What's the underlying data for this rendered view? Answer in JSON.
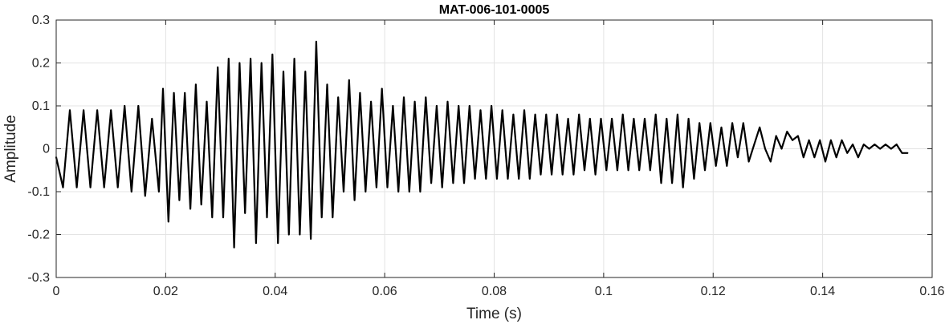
{
  "chart_data": {
    "type": "line",
    "title": "MAT-006-101-0005",
    "xlabel": "Time (s)",
    "ylabel": "Amplitude",
    "xlim": [
      0,
      0.16
    ],
    "ylim": [
      -0.3,
      0.3
    ],
    "grid": true,
    "x_ticks": [
      0,
      0.02,
      0.04,
      0.06,
      0.08,
      0.1,
      0.12,
      0.14,
      0.16
    ],
    "x_tick_labels": [
      "0",
      "0.02",
      "0.04",
      "0.06",
      "0.08",
      "0.1",
      "0.12",
      "0.14",
      "0.16"
    ],
    "y_ticks": [
      -0.3,
      -0.2,
      -0.1,
      0,
      0.1,
      0.2,
      0.3
    ],
    "y_tick_labels": [
      "-0.3",
      "-0.2",
      "-0.1",
      "0",
      "0.1",
      "0.2",
      "0.3"
    ],
    "series": [
      {
        "color": "#000000",
        "x": [
          0,
          0.00125,
          0.0025,
          0.00375,
          0.005,
          0.00625,
          0.0075,
          0.00875,
          0.01,
          0.01125,
          0.0125,
          0.01375,
          0.015,
          0.01625,
          0.0175,
          0.01875,
          0.0195,
          0.0205,
          0.0215,
          0.0225,
          0.0235,
          0.0245,
          0.0255,
          0.0265,
          0.0275,
          0.0285,
          0.0295,
          0.0305,
          0.0315,
          0.0325,
          0.0335,
          0.0345,
          0.0355,
          0.0365,
          0.0375,
          0.0385,
          0.0395,
          0.0405,
          0.0415,
          0.0425,
          0.0435,
          0.0445,
          0.0455,
          0.0465,
          0.0475,
          0.0485,
          0.0495,
          0.0505,
          0.0515,
          0.0525,
          0.0535,
          0.0545,
          0.0555,
          0.0565,
          0.0575,
          0.0585,
          0.0595,
          0.0605,
          0.0615,
          0.0625,
          0.0635,
          0.0645,
          0.0655,
          0.0665,
          0.0675,
          0.0685,
          0.0695,
          0.0705,
          0.0715,
          0.0725,
          0.0735,
          0.0745,
          0.0755,
          0.0765,
          0.0775,
          0.0785,
          0.0795,
          0.0805,
          0.0815,
          0.0825,
          0.0835,
          0.0845,
          0.0855,
          0.0865,
          0.0875,
          0.0885,
          0.0895,
          0.0905,
          0.0915,
          0.0925,
          0.0935,
          0.0945,
          0.0955,
          0.0965,
          0.0975,
          0.0985,
          0.0995,
          0.1005,
          0.1015,
          0.1025,
          0.1035,
          0.1045,
          0.1055,
          0.1065,
          0.1075,
          0.1085,
          0.1095,
          0.1105,
          0.1115,
          0.1125,
          0.1135,
          0.1145,
          0.1155,
          0.1165,
          0.1175,
          0.1185,
          0.1195,
          0.1205,
          0.1215,
          0.1225,
          0.1235,
          0.1245,
          0.1255,
          0.1265,
          0.1275,
          0.1285,
          0.1295,
          0.1305,
          0.1315,
          0.1325,
          0.1335,
          0.1345,
          0.1355,
          0.1365,
          0.1375,
          0.1385,
          0.1395,
          0.1405,
          0.1415,
          0.1425,
          0.1435,
          0.1445,
          0.1455,
          0.1465,
          0.1475,
          0.1485,
          0.1495,
          0.1505,
          0.1515,
          0.1525,
          0.1535,
          0.1545,
          0.1555
        ],
        "y": [
          -0.02,
          -0.09,
          0.09,
          -0.09,
          0.09,
          -0.09,
          0.09,
          -0.09,
          0.09,
          -0.09,
          0.1,
          -0.1,
          0.1,
          -0.11,
          0.07,
          -0.1,
          0.14,
          -0.17,
          0.13,
          -0.12,
          0.13,
          -0.14,
          0.15,
          -0.13,
          0.11,
          -0.16,
          0.19,
          -0.16,
          0.21,
          -0.23,
          0.2,
          -0.15,
          0.21,
          -0.22,
          0.2,
          -0.16,
          0.22,
          -0.22,
          0.18,
          -0.2,
          0.21,
          -0.2,
          0.18,
          -0.21,
          0.25,
          -0.16,
          0.15,
          -0.16,
          0.12,
          -0.1,
          0.16,
          -0.12,
          0.13,
          -0.1,
          0.11,
          -0.09,
          0.14,
          -0.09,
          0.1,
          -0.1,
          0.12,
          -0.1,
          0.11,
          -0.1,
          0.12,
          -0.08,
          0.1,
          -0.09,
          0.11,
          -0.08,
          0.1,
          -0.08,
          0.1,
          -0.07,
          0.09,
          -0.07,
          0.1,
          -0.07,
          0.09,
          -0.07,
          0.08,
          -0.07,
          0.09,
          -0.07,
          0.08,
          -0.06,
          0.08,
          -0.06,
          0.08,
          -0.06,
          0.07,
          -0.06,
          0.08,
          -0.05,
          0.07,
          -0.06,
          0.07,
          -0.05,
          0.07,
          -0.05,
          0.08,
          -0.05,
          0.07,
          -0.05,
          0.07,
          -0.05,
          0.08,
          -0.08,
          0.07,
          -0.08,
          0.08,
          -0.09,
          0.07,
          -0.07,
          0.06,
          -0.05,
          0.06,
          -0.04,
          0.05,
          -0.04,
          0.06,
          -0.02,
          0.06,
          -0.03,
          0.01,
          0.05,
          0.0,
          -0.03,
          0.03,
          0.0,
          0.04,
          0.02,
          0.03,
          -0.02,
          0.02,
          -0.02,
          0.02,
          -0.03,
          0.02,
          -0.02,
          0.02,
          -0.01,
          0.01,
          -0.02,
          0.01,
          0.0,
          0.01,
          0.0,
          0.01,
          0.0,
          0.01,
          -0.01,
          -0.01
        ]
      }
    ]
  }
}
